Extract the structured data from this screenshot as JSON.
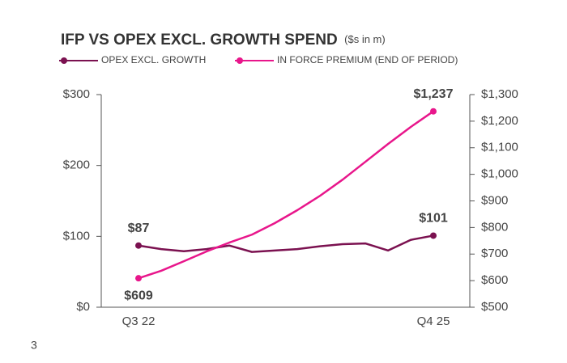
{
  "chart_data": {
    "type": "line",
    "title": "IFP VS OPEX EXCL. GROWTH SPEND",
    "subtitle": "($s in m)",
    "categories": [
      "Q3 22",
      null,
      null,
      null,
      null,
      null,
      null,
      null,
      null,
      null,
      null,
      null,
      null,
      "Q4 25"
    ],
    "series": [
      {
        "name": "OPEX EXCL. GROWTH",
        "color": "#7b1150",
        "axis": "y",
        "values": [
          87,
          82,
          79,
          82,
          87,
          78,
          80,
          82,
          86,
          89,
          90,
          80,
          95,
          101
        ],
        "value_labels": [
          "$87",
          null,
          null,
          null,
          null,
          null,
          null,
          null,
          null,
          null,
          null,
          null,
          null,
          "$101"
        ]
      },
      {
        "name": "IN FORCE PREMIUM (END OF PERIOD)",
        "color": "#e8168b",
        "axis": "y2",
        "values": [
          609,
          637,
          673,
          710,
          743,
          773,
          816,
          865,
          919,
          980,
          1047,
          1114,
          1178,
          1237
        ],
        "value_labels": [
          "$609",
          null,
          null,
          null,
          null,
          null,
          null,
          null,
          null,
          null,
          null,
          null,
          null,
          "$1,237"
        ]
      }
    ],
    "ylim": [
      0,
      300
    ],
    "yticks": [
      {
        "value": 0,
        "label": "$0"
      },
      {
        "value": 100,
        "label": "$100"
      },
      {
        "value": 200,
        "label": "$200"
      },
      {
        "value": 300,
        "label": "$300"
      }
    ],
    "y2lim": [
      500,
      1300
    ],
    "y2ticks": [
      {
        "value": 500,
        "label": "$500"
      },
      {
        "value": 600,
        "label": "$600"
      },
      {
        "value": 700,
        "label": "$700"
      },
      {
        "value": 800,
        "label": "$800"
      },
      {
        "value": 900,
        "label": "$900"
      },
      {
        "value": 1000,
        "label": "$1,000"
      },
      {
        "value": 1100,
        "label": "$1,100"
      },
      {
        "value": 1200,
        "label": "$1,200"
      },
      {
        "value": 1300,
        "label": "$1,300"
      }
    ],
    "grid": false,
    "legend": "top"
  },
  "page_number": "3"
}
